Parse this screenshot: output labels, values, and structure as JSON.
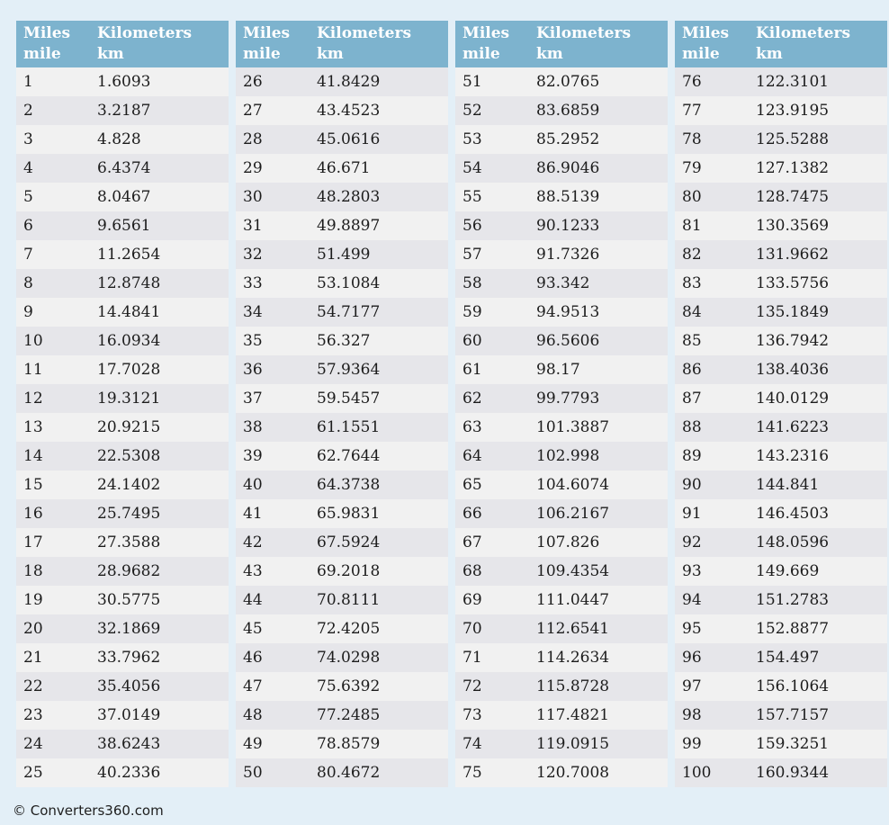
{
  "page": {
    "background_color": "#e3eff7",
    "footer_copyright": "© Converters360.com"
  },
  "colors": {
    "header_background": "#7db3ce",
    "header_text": "#ffffff",
    "row_odd_background": "#f1f1f1",
    "row_even_background": "#e6e6ea",
    "cell_text": "#1c1c1c"
  },
  "header": {
    "miles_label": "Miles",
    "miles_unit": "mile",
    "kilometers_label": "Kilometers",
    "kilometers_unit": "km"
  },
  "chart_data": {
    "type": "table",
    "columns": [
      "Miles mile",
      "Kilometers km"
    ],
    "sections": [
      {
        "rows": [
          [
            "1",
            "1.6093"
          ],
          [
            "2",
            "3.2187"
          ],
          [
            "3",
            "4.828"
          ],
          [
            "4",
            "6.4374"
          ],
          [
            "5",
            "8.0467"
          ],
          [
            "6",
            "9.6561"
          ],
          [
            "7",
            "11.2654"
          ],
          [
            "8",
            "12.8748"
          ],
          [
            "9",
            "14.4841"
          ],
          [
            "10",
            "16.0934"
          ],
          [
            "11",
            "17.7028"
          ],
          [
            "12",
            "19.3121"
          ],
          [
            "13",
            "20.9215"
          ],
          [
            "14",
            "22.5308"
          ],
          [
            "15",
            "24.1402"
          ],
          [
            "16",
            "25.7495"
          ],
          [
            "17",
            "27.3588"
          ],
          [
            "18",
            "28.9682"
          ],
          [
            "19",
            "30.5775"
          ],
          [
            "20",
            "32.1869"
          ],
          [
            "21",
            "33.7962"
          ],
          [
            "22",
            "35.4056"
          ],
          [
            "23",
            "37.0149"
          ],
          [
            "24",
            "38.6243"
          ],
          [
            "25",
            "40.2336"
          ]
        ]
      },
      {
        "rows": [
          [
            "26",
            "41.8429"
          ],
          [
            "27",
            "43.4523"
          ],
          [
            "28",
            "45.0616"
          ],
          [
            "29",
            "46.671"
          ],
          [
            "30",
            "48.2803"
          ],
          [
            "31",
            "49.8897"
          ],
          [
            "32",
            "51.499"
          ],
          [
            "33",
            "53.1084"
          ],
          [
            "34",
            "54.7177"
          ],
          [
            "35",
            "56.327"
          ],
          [
            "36",
            "57.9364"
          ],
          [
            "37",
            "59.5457"
          ],
          [
            "38",
            "61.1551"
          ],
          [
            "39",
            "62.7644"
          ],
          [
            "40",
            "64.3738"
          ],
          [
            "41",
            "65.9831"
          ],
          [
            "42",
            "67.5924"
          ],
          [
            "43",
            "69.2018"
          ],
          [
            "44",
            "70.8111"
          ],
          [
            "45",
            "72.4205"
          ],
          [
            "46",
            "74.0298"
          ],
          [
            "47",
            "75.6392"
          ],
          [
            "48",
            "77.2485"
          ],
          [
            "49",
            "78.8579"
          ],
          [
            "50",
            "80.4672"
          ]
        ]
      },
      {
        "rows": [
          [
            "51",
            "82.0765"
          ],
          [
            "52",
            "83.6859"
          ],
          [
            "53",
            "85.2952"
          ],
          [
            "54",
            "86.9046"
          ],
          [
            "55",
            "88.5139"
          ],
          [
            "56",
            "90.1233"
          ],
          [
            "57",
            "91.7326"
          ],
          [
            "58",
            "93.342"
          ],
          [
            "59",
            "94.9513"
          ],
          [
            "60",
            "96.5606"
          ],
          [
            "61",
            "98.17"
          ],
          [
            "62",
            "99.7793"
          ],
          [
            "63",
            "101.3887"
          ],
          [
            "64",
            "102.998"
          ],
          [
            "65",
            "104.6074"
          ],
          [
            "66",
            "106.2167"
          ],
          [
            "67",
            "107.826"
          ],
          [
            "68",
            "109.4354"
          ],
          [
            "69",
            "111.0447"
          ],
          [
            "70",
            "112.6541"
          ],
          [
            "71",
            "114.2634"
          ],
          [
            "72",
            "115.8728"
          ],
          [
            "73",
            "117.4821"
          ],
          [
            "74",
            "119.0915"
          ],
          [
            "75",
            "120.7008"
          ]
        ]
      },
      {
        "rows": [
          [
            "76",
            "122.3101"
          ],
          [
            "77",
            "123.9195"
          ],
          [
            "78",
            "125.5288"
          ],
          [
            "79",
            "127.1382"
          ],
          [
            "80",
            "128.7475"
          ],
          [
            "81",
            "130.3569"
          ],
          [
            "82",
            "131.9662"
          ],
          [
            "83",
            "133.5756"
          ],
          [
            "84",
            "135.1849"
          ],
          [
            "85",
            "136.7942"
          ],
          [
            "86",
            "138.4036"
          ],
          [
            "87",
            "140.0129"
          ],
          [
            "88",
            "141.6223"
          ],
          [
            "89",
            "143.2316"
          ],
          [
            "90",
            "144.841"
          ],
          [
            "91",
            "146.4503"
          ],
          [
            "92",
            "148.0596"
          ],
          [
            "93",
            "149.669"
          ],
          [
            "94",
            "151.2783"
          ],
          [
            "95",
            "152.8877"
          ],
          [
            "96",
            "154.497"
          ],
          [
            "97",
            "156.1064"
          ],
          [
            "98",
            "157.7157"
          ],
          [
            "99",
            "159.3251"
          ],
          [
            "100",
            "160.9344"
          ]
        ]
      }
    ]
  }
}
